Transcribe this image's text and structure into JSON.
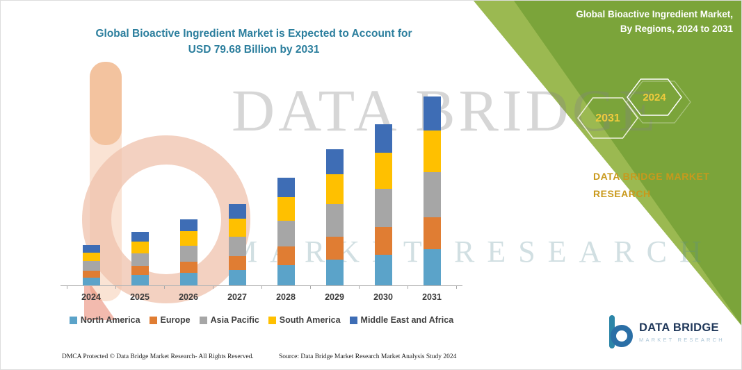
{
  "header": {
    "chart_title_line1": "Global Bioactive Ingredient Market is Expected to Account for",
    "chart_title_line2": "USD 79.68 Billion by 2031"
  },
  "panel": {
    "title_line1": "Global Bioactive Ingredient Market,",
    "title_line2": "By Regions, 2024 to 2031",
    "hexagons": [
      {
        "label": "2031"
      },
      {
        "label": "2024"
      }
    ],
    "brand_line1": "DATA BRIDGE MARKET",
    "brand_line2": "RESEARCH",
    "colors": {
      "panel_green": "#7BA43A",
      "edge_stripe": "#A6C059",
      "brand_yellow": "#C9991C",
      "hex_label_yellow": "#F0CB3C"
    }
  },
  "watermark": {
    "row1": "DATA BRIDGE",
    "row2": "MARKET RESEARCH"
  },
  "chart_data": {
    "type": "bar",
    "stacked": true,
    "title": "Global Bioactive Ingredient Market is Expected to Account for USD 79.68 Billion by 2031",
    "unit": "USD Billion",
    "xlabel": "",
    "ylabel": "",
    "ylim": [
      0,
      85
    ],
    "gridlines": false,
    "legend_position": "bottom",
    "categories": [
      "2024",
      "2025",
      "2026",
      "2027",
      "2028",
      "2029",
      "2030",
      "2031"
    ],
    "series": [
      {
        "name": "North America",
        "color": "#5BA3C9",
        "values": [
          3.2,
          4.3,
          5.3,
          6.5,
          8.6,
          10.9,
          12.9,
          15.1
        ]
      },
      {
        "name": "Europe",
        "color": "#E07D33",
        "values": [
          2.9,
          3.8,
          4.7,
          5.8,
          7.7,
          9.7,
          11.6,
          13.5
        ]
      },
      {
        "name": "Asia Pacific",
        "color": "#A6A6A6",
        "values": [
          4.1,
          5.4,
          6.6,
          8.2,
          10.9,
          13.7,
          16.3,
          19.1
        ]
      },
      {
        "name": "South America",
        "color": "#FFC000",
        "values": [
          3.7,
          5.0,
          6.1,
          7.5,
          10.0,
          12.6,
          15.0,
          17.6
        ]
      },
      {
        "name": "Middle East and Africa",
        "color": "#3E6DB5",
        "values": [
          3.1,
          4.0,
          5.0,
          6.2,
          8.1,
          10.3,
          12.2,
          14.4
        ]
      }
    ],
    "totals_estimated": [
      17.0,
      22.5,
      27.7,
      34.2,
      45.3,
      57.2,
      68.0,
      79.68
    ]
  },
  "footer": {
    "dmca": "DMCA Protected © Data Bridge Market Research-  All Rights Reserved.",
    "source": "Source: Data Bridge Market Research  Market Analysis Study 2024"
  },
  "logo": {
    "brand": "DATA BRIDGE",
    "sub": "MARKET RESEARCH"
  },
  "colors": {
    "title_teal": "#2B7E9D",
    "axis_label_gray": "#3B3B3B"
  }
}
